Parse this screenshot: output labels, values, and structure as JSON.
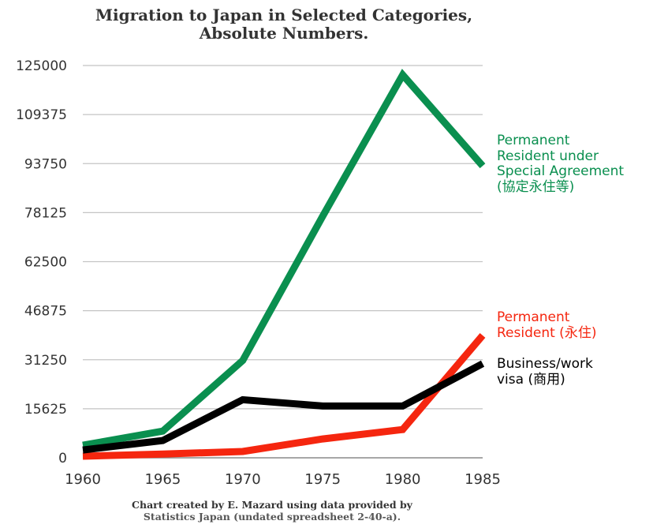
{
  "chart_data": {
    "type": "line",
    "title": "Migration to Japan in Selected Categories,",
    "subtitle": "Absolute Numbers.",
    "x": [
      1960,
      1965,
      1970,
      1975,
      1980,
      1985
    ],
    "xlim": [
      1960,
      1985
    ],
    "ylim": [
      0,
      125000
    ],
    "yticks": [
      "0",
      "15625",
      "31250",
      "46875",
      "62500",
      "78125",
      "93750",
      "109375",
      "125000"
    ],
    "xticks": [
      "1960",
      "1965",
      "1970",
      "1975",
      "1980",
      "1985"
    ],
    "grid": "horizontal",
    "series": [
      {
        "name": "Permanent Resident under Special Agreement (協定永住等)",
        "label_lines": [
          "Permanent",
          "Resident under",
          "Special Agreement",
          "(協定永住等)"
        ],
        "color": "#0a8f4f",
        "values": [
          4000,
          8500,
          31000,
          77000,
          122000,
          93000
        ]
      },
      {
        "name": "Permanent Resident (永住)",
        "label_lines": [
          "Permanent",
          "Resident (永住)"
        ],
        "color": "#f5260f",
        "values": [
          500,
          1200,
          2000,
          6000,
          9000,
          39000
        ]
      },
      {
        "name": "Business/work visa (商用)",
        "label_lines": [
          "Business/work",
          "visa (商用)"
        ],
        "color": "#000000",
        "values": [
          2500,
          5500,
          18500,
          16500,
          16500,
          30000
        ]
      }
    ],
    "credit_lines": [
      "Chart created by E. Mazard using data provided by",
      "Statistics Japan (undated spreadsheet 2-40-a)."
    ]
  }
}
